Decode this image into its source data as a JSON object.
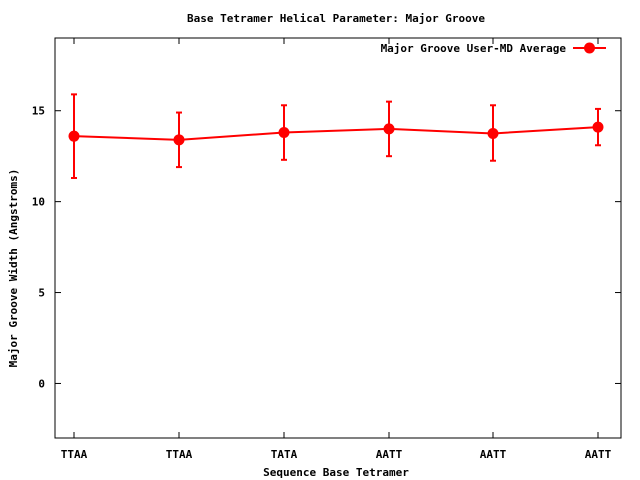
{
  "chart_data": {
    "type": "line",
    "title": "Base Tetramer Helical Parameter: Major Groove",
    "xlabel": "Sequence Base Tetramer",
    "ylabel": "Major Groove Width (Angstroms)",
    "categories": [
      "TTAA",
      "TTAA",
      "TATA",
      "AATT",
      "AATT",
      "AATT"
    ],
    "ylim": [
      -3,
      19
    ],
    "yticks": [
      0,
      5,
      10,
      15
    ],
    "grid": false,
    "legend": "top-right",
    "series": [
      {
        "name": "Major Groove User-MD Average",
        "color": "#ff0000",
        "marker": "circle",
        "values": [
          13.6,
          13.4,
          13.8,
          14.0,
          13.75,
          14.1
        ],
        "err_low": [
          11.3,
          11.9,
          12.3,
          12.5,
          12.25,
          13.1
        ],
        "err_high": [
          15.9,
          14.9,
          15.3,
          15.5,
          15.3,
          15.1
        ]
      }
    ]
  }
}
